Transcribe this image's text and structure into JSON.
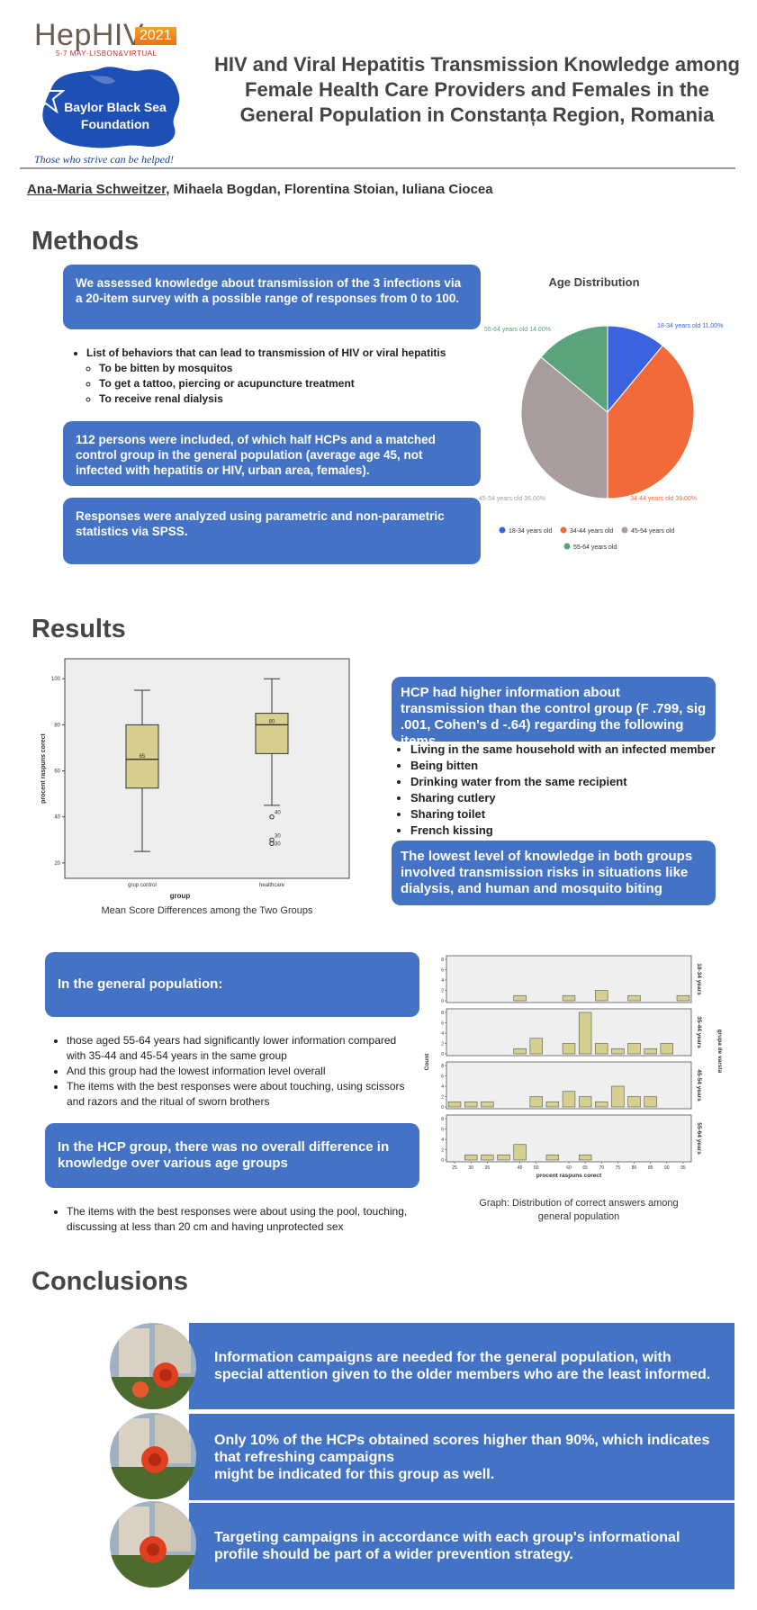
{
  "logo": {
    "name": "HepHIV",
    "year": "2021",
    "subtitle": "5-7 MAY·LISBON&VIRTUAL",
    "foundation": "Baylor Black Sea Foundation",
    "motto": "Those who strive can be helped!"
  },
  "title": "HIV and Viral Hepatitis Transmission Knowledge among Female Health Care Providers  and Females in the General Population in Constanța Region, Romania",
  "authors": {
    "first": "Ana-Maria Schweitzer",
    "rest": ", Mihaela Bogdan, Florentina Stoian, Iuliana Ciocea"
  },
  "methods": {
    "heading": "Methods",
    "box1": "We assessed knowledge about transmission of the 3 infections via a 20-item survey with a possible range of responses from 0 to 100.",
    "list_title": "List of behaviors that can lead to transmission of HIV or viral hepatitis",
    "list_items": [
      "To be bitten by mosquitos",
      "To get a tattoo, piercing or acupuncture treatment",
      "To receive renal dialysis"
    ],
    "box2": "112 persons were included, of which half HCPs and a matched control group in the general population (average age 45, not infected with hepatitis or HIV, urban area, females).",
    "box3": "Responses were analyzed using parametric and non-parametric statistics via SPSS."
  },
  "colors": {
    "accent_blue": "#4472c4",
    "pie": [
      "#3b63e0",
      "#f2693a",
      "#a99c9c",
      "#5aa37c"
    ],
    "box_fill": "#d6cf8f"
  },
  "results": {
    "heading": "Results",
    "box_caption": "Mean Score Differences among the Two Groups",
    "hcp_box": "HCP had higher information about transmission than the control group (F .799, sig .001, Cohen's d -.64) regarding the following items",
    "hcp_items": [
      "Living in the same household with an infected member",
      "Being bitten",
      "Drinking water from the same recipient",
      "Sharing cutlery",
      "Sharing toilet",
      "French kissing"
    ],
    "lowest_box": "The lowest level of knowledge in both groups involved transmission risks in situations like dialysis, and human and mosquito biting",
    "gen_pop_box": "In the general population:",
    "gen_pop_items": [
      "those aged 55-64 years had significantly lower information compared with 35-44 and 45-54 years in the same group",
      "And this group had the lowest information level overall",
      "The items with the best responses were about touching, using scissors and razors and the ritual of sworn brothers"
    ],
    "hcp_group_box": "In the HCP group, there was no overall difference in knowledge over various age groups",
    "hcp_group_items": [
      "The items with the best responses were about using the pool, touching, discussing at less than 20 cm and having unprotected sex"
    ],
    "hist_caption": "Graph: Distribution of correct answers among general population"
  },
  "conclusions": {
    "heading": "Conclusions",
    "items": [
      "Information campaigns are needed for the general population, with special attention given to the older members who are the least informed.",
      "Only 10% of the HCPs obtained scores higher than 90%, which indicates that refreshing campaigns\nmight be indicated for this group as well.",
      "Targeting campaigns in accordance with each group's informational profile should be part of a wider prevention strategy."
    ]
  },
  "chart_data": [
    {
      "type": "pie",
      "title": "Age Distribution",
      "slices": [
        {
          "label": "18-34 years old",
          "value": 11.0,
          "text": "18-34 years old 11.00%"
        },
        {
          "label": "34-44 years old",
          "value": 39.0,
          "text": "34-44 years old 39.00%"
        },
        {
          "label": "45-54 years old",
          "value": 36.0,
          "text": "45-54 years old 36.00%"
        },
        {
          "label": "55-64 years old",
          "value": 14.0,
          "text": "55-64 years old 14.00%"
        }
      ],
      "legend": [
        "18-34 years old",
        "34-44 years old",
        "45-54 years old",
        "55-64 years old"
      ],
      "legend_position": "bottom"
    },
    {
      "type": "box",
      "xlabel": "group",
      "ylabel": "procent raspuns corect",
      "ylim": [
        18,
        104
      ],
      "yticks": [
        20,
        40,
        60,
        80,
        100
      ],
      "groups": [
        {
          "name": "grup control",
          "min": 25,
          "q1": 52.5,
          "median": 65,
          "q3": 80,
          "max": 95,
          "label": "65",
          "outliers": []
        },
        {
          "name": "healthcare",
          "min": 45,
          "q1": 67.5,
          "median": 80,
          "q3": 85,
          "max": 100,
          "label": "80",
          "outliers": [
            {
              "value": 40,
              "label": "40"
            },
            {
              "value": 30,
              "label": "30"
            },
            {
              "value": 30,
              "label": "30"
            }
          ]
        }
      ]
    },
    {
      "type": "bar",
      "subtype": "histogram-panels",
      "xlabel": "procent raspuns corect",
      "ylabel": "Count",
      "facet_label": "grupa de varsta",
      "x": [
        25,
        30,
        35,
        40,
        45,
        50,
        55,
        60,
        65,
        70,
        75,
        80,
        85,
        90,
        95
      ],
      "xticks": [
        "25",
        "30",
        "35",
        "45",
        "50",
        "60",
        "65",
        "70",
        "75",
        "80",
        "85",
        "90",
        "95"
      ],
      "ylim": [
        0,
        8
      ],
      "yticks": [
        0,
        2,
        4,
        6,
        8
      ],
      "series": [
        {
          "name": "18-34 years",
          "values": [
            0,
            0,
            0,
            0,
            1,
            0,
            0,
            1,
            0,
            2,
            0,
            1,
            0,
            0,
            1
          ]
        },
        {
          "name": "35-44 years",
          "values": [
            0,
            0,
            0,
            0,
            1,
            3,
            0,
            2,
            8,
            2,
            1,
            2,
            1,
            2,
            0
          ]
        },
        {
          "name": "45-54 years",
          "values": [
            1,
            1,
            1,
            0,
            0,
            2,
            1,
            3,
            2,
            1,
            4,
            2,
            2,
            0,
            0
          ]
        },
        {
          "name": "55-64 years",
          "values": [
            0,
            1,
            1,
            1,
            3,
            0,
            1,
            0,
            1,
            0,
            0,
            0,
            0,
            0,
            0
          ]
        }
      ]
    }
  ]
}
